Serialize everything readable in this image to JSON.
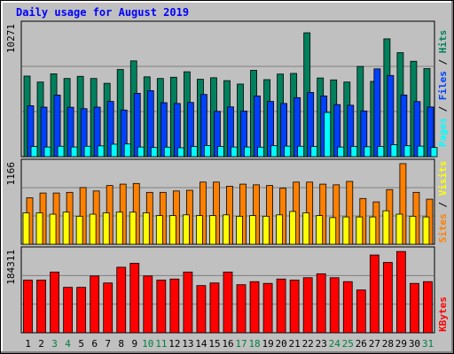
{
  "title": "Daily usage for August 2019",
  "chart_data": [
    {
      "type": "bar",
      "panel": "pages-files-hits",
      "ymax_label": "10271",
      "ylim": [
        0,
        10271
      ],
      "categories": [
        "1",
        "2",
        "3",
        "4",
        "5",
        "6",
        "7",
        "8",
        "9",
        "10",
        "11",
        "12",
        "13",
        "14",
        "15",
        "16",
        "17",
        "18",
        "19",
        "20",
        "21",
        "22",
        "23",
        "24",
        "25",
        "26",
        "27",
        "28",
        "29",
        "30",
        "31"
      ],
      "weekend_days": [
        3,
        4,
        10,
        11,
        17,
        18,
        24,
        25,
        31
      ],
      "series": [
        {
          "name": "Hits",
          "color": "#00805c",
          "values": [
            6360,
            5890,
            6540,
            6170,
            6340,
            6170,
            5790,
            6880,
            7560,
            6300,
            6170,
            6270,
            6700,
            6110,
            6230,
            6000,
            5730,
            6820,
            6080,
            6520,
            6570,
            9780,
            6210,
            6060,
            5890,
            7120,
            5940,
            9300,
            8210,
            7530,
            6950
          ]
        },
        {
          "name": "Files",
          "color": "#0040ff",
          "values": [
            4020,
            3910,
            4860,
            3900,
            3790,
            3910,
            4360,
            3680,
            5000,
            5210,
            4260,
            4200,
            4280,
            4910,
            3580,
            3930,
            3600,
            4790,
            4360,
            4200,
            4660,
            5070,
            4790,
            4110,
            4060,
            3610,
            6930,
            6410,
            4870,
            4350,
            3920
          ]
        },
        {
          "name": "Pages",
          "color": "#00ffff",
          "values": [
            800,
            760,
            820,
            760,
            820,
            850,
            980,
            1000,
            760,
            720,
            750,
            700,
            800,
            880,
            800,
            760,
            760,
            750,
            860,
            830,
            820,
            800,
            3490,
            760,
            800,
            780,
            800,
            940,
            860,
            830,
            720
          ]
        }
      ]
    },
    {
      "type": "bar",
      "panel": "sites-visits",
      "ymax_label": "1166",
      "ylim": [
        0,
        1166
      ],
      "categories": [
        "1",
        "2",
        "3",
        "4",
        "5",
        "6",
        "7",
        "8",
        "9",
        "10",
        "11",
        "12",
        "13",
        "14",
        "15",
        "16",
        "17",
        "18",
        "19",
        "20",
        "21",
        "22",
        "23",
        "24",
        "25",
        "26",
        "27",
        "28",
        "29",
        "30",
        "31"
      ],
      "series": [
        {
          "name": "Visits",
          "color": "#ff8000",
          "values": [
            680,
            750,
            750,
            760,
            830,
            780,
            860,
            880,
            890,
            760,
            760,
            780,
            790,
            910,
            910,
            850,
            880,
            870,
            860,
            820,
            910,
            910,
            880,
            870,
            920,
            670,
            620,
            800,
            1180,
            760,
            660
          ]
        },
        {
          "name": "Sites",
          "color": "#ffff00",
          "values": [
            460,
            460,
            440,
            470,
            410,
            440,
            460,
            470,
            470,
            460,
            420,
            420,
            430,
            420,
            420,
            430,
            410,
            420,
            410,
            430,
            480,
            460,
            420,
            390,
            400,
            400,
            400,
            490,
            440,
            410,
            400
          ]
        }
      ]
    },
    {
      "type": "bar",
      "panel": "kbytes",
      "ymax_label": "184311",
      "ylim": [
        0,
        184311
      ],
      "categories": [
        "1",
        "2",
        "3",
        "4",
        "5",
        "6",
        "7",
        "8",
        "9",
        "10",
        "11",
        "12",
        "13",
        "14",
        "15",
        "16",
        "17",
        "18",
        "19",
        "20",
        "21",
        "22",
        "23",
        "24",
        "25",
        "26",
        "27",
        "28",
        "29",
        "30",
        "31"
      ],
      "series": [
        {
          "name": "KBytes",
          "color": "#ff0000",
          "values": [
            120500,
            120500,
            139000,
            104000,
            104000,
            130000,
            114000,
            150000,
            159000,
            130000,
            120500,
            123000,
            139000,
            108000,
            114000,
            139000,
            110000,
            117000,
            113000,
            123000,
            120500,
            126000,
            135000,
            126000,
            117000,
            98000,
            178000,
            161000,
            186000,
            113000,
            117000
          ]
        }
      ]
    }
  ],
  "axis_labels": {
    "top": [
      "Pages",
      "Files",
      "Hits"
    ],
    "middle": [
      "Sites",
      "Visits"
    ],
    "bottom": [
      "KBytes"
    ],
    "separator": " / "
  },
  "colors": {
    "background": "#c0c0c0",
    "plot": "#c0c0c0",
    "title": "#0000ff",
    "weekday_label": "#000000",
    "weekend_label": "#008040"
  }
}
